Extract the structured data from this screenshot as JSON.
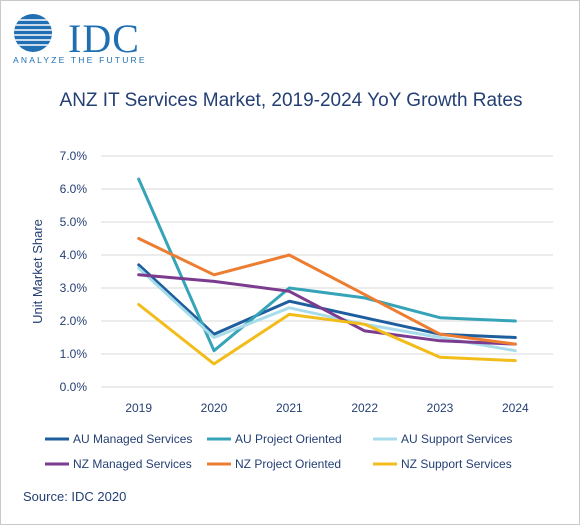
{
  "logo": {
    "name": "IDC",
    "tagline": "ANALYZE THE FUTURE"
  },
  "colors": {
    "brand": "#1f6fb2",
    "title": "#243f73",
    "au_managed": "#1f5e9e",
    "au_project": "#35a3b8",
    "au_support": "#a8dcea",
    "nz_managed": "#7b3b8f",
    "nz_project": "#ec7d31",
    "nz_support": "#f2bc1a"
  },
  "chart_data": {
    "type": "line",
    "title": "ANZ IT Services Market, 2019-2024 YoY Growth Rates",
    "ylabel": "Unit Market Share",
    "xlabel": "",
    "x": [
      "2019",
      "2020",
      "2021",
      "2022",
      "2023",
      "2024"
    ],
    "ylim": [
      0,
      7
    ],
    "yticks": [
      "0.0%",
      "1.0%",
      "2.0%",
      "3.0%",
      "4.0%",
      "5.0%",
      "6.0%",
      "7.0%"
    ],
    "grid": true,
    "legend_position": "bottom",
    "series": [
      {
        "name": "AU Managed Services",
        "color": "#1f5e9e",
        "values": [
          3.7,
          1.6,
          2.6,
          2.1,
          1.6,
          1.5
        ]
      },
      {
        "name": "AU Project Oriented",
        "color": "#35a3b8",
        "values": [
          6.3,
          1.1,
          3.0,
          2.7,
          2.1,
          2.0
        ]
      },
      {
        "name": "AU Support Services",
        "color": "#a8dcea",
        "values": [
          3.6,
          1.5,
          2.4,
          1.9,
          1.5,
          1.1
        ]
      },
      {
        "name": "NZ Managed Services",
        "color": "#7b3b8f",
        "values": [
          3.4,
          3.2,
          2.9,
          1.7,
          1.4,
          1.3
        ]
      },
      {
        "name": "NZ Project Oriented",
        "color": "#ec7d31",
        "values": [
          4.5,
          3.4,
          4.0,
          2.8,
          1.6,
          1.3
        ]
      },
      {
        "name": "NZ Support Services",
        "color": "#f2bc1a",
        "values": [
          2.5,
          0.7,
          2.2,
          1.9,
          0.9,
          0.8
        ]
      }
    ]
  },
  "source": "Source: IDC 2020"
}
